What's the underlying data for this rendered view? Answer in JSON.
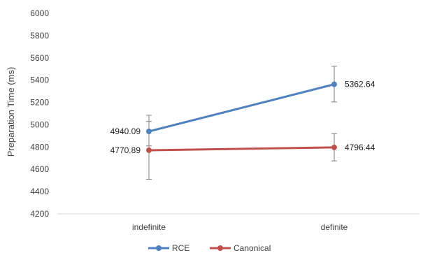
{
  "chart_data": {
    "type": "line",
    "categories": [
      "indefinite",
      "definite"
    ],
    "ylabel": "Preparation Time (ms)",
    "xlabel": "",
    "title": "",
    "ylim": [
      4200,
      6000
    ],
    "ytick_step": 200,
    "ytick_labels": [
      "4200",
      "4400",
      "4600",
      "4800",
      "5000",
      "5200",
      "5400",
      "5600",
      "5800",
      "6000"
    ],
    "grid": false,
    "legend_position": "bottom",
    "series": [
      {
        "name": "RCE",
        "color": "#4F81BD",
        "values": [
          4940.09,
          5362.64
        ],
        "value_labels": [
          "4940.09",
          "5362.64"
        ],
        "error_low": [
          4810,
          5205
        ],
        "error_high": [
          5085,
          5525
        ]
      },
      {
        "name": "Canonical",
        "color": "#C0504D",
        "values": [
          4770.89,
          4796.44
        ],
        "value_labels": [
          "4770.89",
          "4796.44"
        ],
        "error_low": [
          4510,
          4675
        ],
        "error_high": [
          5030,
          4920
        ]
      }
    ]
  }
}
